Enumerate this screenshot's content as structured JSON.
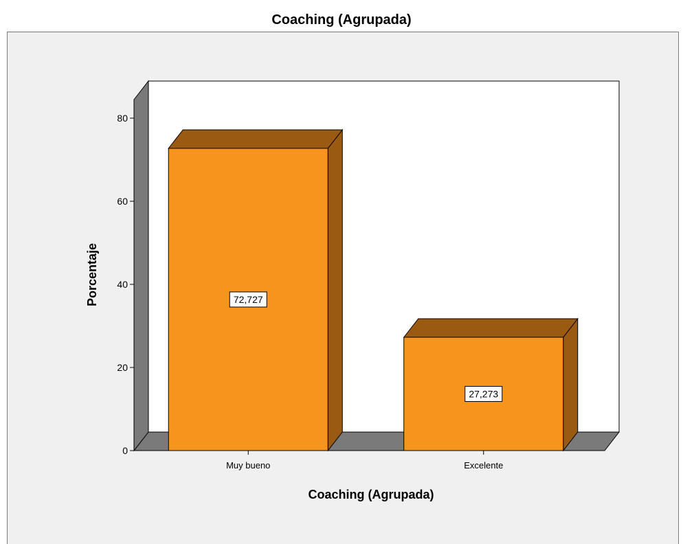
{
  "chart_data": {
    "type": "bar",
    "title": "Coaching (Agrupada)",
    "xlabel": "Coaching (Agrupada)",
    "ylabel": "Porcentaje",
    "categories": [
      "Muy bueno",
      "Excelente"
    ],
    "values": [
      72.727,
      27.273
    ],
    "data_labels": [
      "72,727",
      "27,273"
    ],
    "ylim": [
      0,
      80
    ],
    "yticks": [
      0,
      20,
      40,
      60,
      80
    ],
    "style": "3d",
    "grid": false,
    "legend": "none",
    "colors": {
      "bar_front": "#f7941d",
      "bar_side": "#9b5a12",
      "bar_top": "#9b5a12",
      "floor_wall": "#7a7a7a",
      "plot_background": "#ffffff",
      "frame_background": "#f0f0f0"
    }
  }
}
